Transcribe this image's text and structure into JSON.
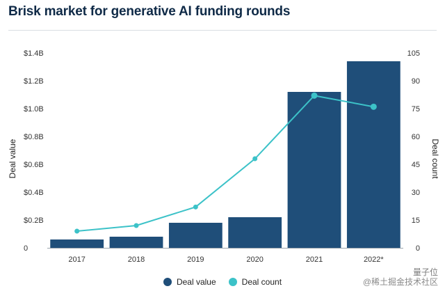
{
  "chart_data": {
    "type": "bar",
    "title": "Brisk market for generative AI funding rounds",
    "categories": [
      "2017",
      "2018",
      "2019",
      "2020",
      "2021",
      "2022*"
    ],
    "series": [
      {
        "name": "Deal value",
        "kind": "bar",
        "axis": "left",
        "unit": "$B",
        "values": [
          0.06,
          0.08,
          0.18,
          0.22,
          1.12,
          1.34
        ],
        "color": "#1f4e79"
      },
      {
        "name": "Deal count",
        "kind": "line",
        "axis": "right",
        "values": [
          9,
          12,
          22,
          48,
          82,
          76
        ],
        "color": "#3cc2c8"
      }
    ],
    "ylabel_left": "Deal value",
    "ylabel_right": "Deal count",
    "ylim_left": [
      0,
      1.4
    ],
    "ylim_right": [
      0,
      105
    ],
    "yticks_left": [
      "0",
      "$0.2B",
      "$0.4B",
      "$0.6B",
      "$0.8B",
      "$1.0B",
      "$1.2B",
      "$1.4B"
    ],
    "yticks_right": [
      "0",
      "15",
      "30",
      "45",
      "60",
      "75",
      "90",
      "105"
    ],
    "grid": false,
    "legend_position": "bottom"
  },
  "legend": {
    "bar_label": "Deal value",
    "line_label": "Deal count"
  },
  "watermark": {
    "top": "量子位",
    "bottom": "@稀土掘金技术社区"
  }
}
